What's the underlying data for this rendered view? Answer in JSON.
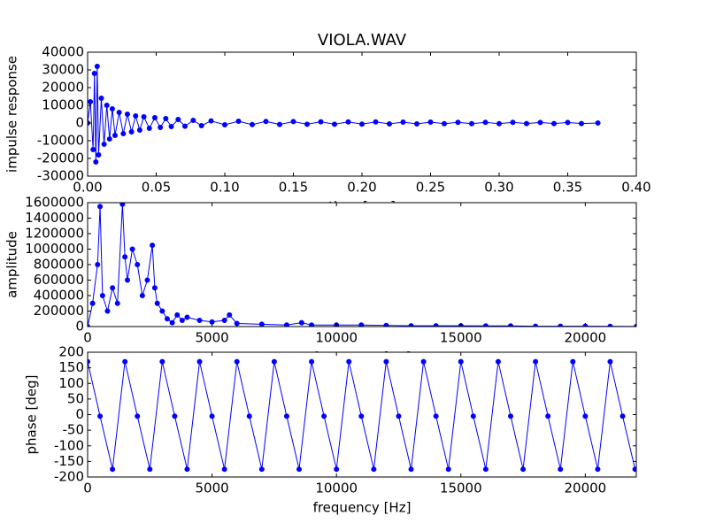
{
  "chart_data": [
    {
      "type": "line",
      "title": "VIOLA.WAV",
      "xlabel": "time [sec]",
      "ylabel": "impulse response",
      "color": "#0000ff",
      "marker": true,
      "x": [
        0.0,
        0.002,
        0.004,
        0.005,
        0.006,
        0.007,
        0.008,
        0.01,
        0.012,
        0.014,
        0.016,
        0.018,
        0.02,
        0.023,
        0.026,
        0.029,
        0.032,
        0.035,
        0.038,
        0.041,
        0.045,
        0.049,
        0.053,
        0.057,
        0.061,
        0.066,
        0.071,
        0.077,
        0.083,
        0.09,
        0.1,
        0.11,
        0.12,
        0.13,
        0.14,
        0.15,
        0.16,
        0.17,
        0.18,
        0.19,
        0.2,
        0.21,
        0.22,
        0.23,
        0.24,
        0.25,
        0.26,
        0.27,
        0.28,
        0.29,
        0.3,
        0.31,
        0.32,
        0.33,
        0.34,
        0.35,
        0.36,
        0.372
      ],
      "values": [
        0,
        12000,
        -15000,
        28000,
        -22000,
        32000,
        -18000,
        14000,
        -12000,
        10000,
        -9000,
        8000,
        -7000,
        6000,
        -6000,
        5000,
        -5000,
        4000,
        -4000,
        3500,
        -3000,
        3000,
        -2500,
        2500,
        -2000,
        2000,
        -1800,
        1500,
        -1500,
        1200,
        -1000,
        1000,
        -900,
        900,
        -800,
        800,
        -700,
        700,
        -700,
        600,
        -600,
        600,
        -500,
        500,
        -500,
        500,
        -400,
        400,
        -400,
        400,
        -400,
        400,
        -300,
        300,
        -300,
        300,
        -300,
        0
      ],
      "xlim": [
        0,
        0.4
      ],
      "xticks": [
        {
          "value": 0,
          "label": "0.00"
        },
        0.05,
        {
          "value": 0.1,
          "label": "0.10"
        },
        0.15,
        {
          "value": 0.2,
          "label": "0.20"
        },
        0.25,
        {
          "value": 0.3,
          "label": "0.30"
        },
        0.35,
        {
          "value": 0.4,
          "label": "0.40"
        }
      ],
      "ylim": [
        -30000,
        40000
      ],
      "yticks": [
        -30000,
        -20000,
        -10000,
        0,
        10000,
        20000,
        30000,
        40000
      ]
    },
    {
      "type": "line",
      "xlabel": "frequency [Hz]",
      "ylabel": "amplitude",
      "color": "#0000ff",
      "marker": true,
      "x": [
        0,
        200,
        400,
        500,
        600,
        800,
        1000,
        1200,
        1400,
        1500,
        1600,
        1800,
        2000,
        2200,
        2400,
        2600,
        2700,
        2800,
        3000,
        3200,
        3400,
        3600,
        3800,
        4000,
        4500,
        5000,
        5500,
        5700,
        6000,
        7000,
        8000,
        8600,
        9000,
        10000,
        11000,
        12000,
        13000,
        14000,
        15000,
        16000,
        17000,
        18000,
        19000,
        20000,
        21000,
        22050
      ],
      "values": [
        0,
        300000,
        800000,
        1550000,
        400000,
        200000,
        500000,
        300000,
        1580000,
        900000,
        600000,
        1000000,
        800000,
        400000,
        600000,
        1050000,
        500000,
        300000,
        200000,
        100000,
        50000,
        150000,
        80000,
        120000,
        80000,
        60000,
        80000,
        150000,
        40000,
        30000,
        20000,
        50000,
        20000,
        20000,
        20000,
        15000,
        10000,
        10000,
        10000,
        8000,
        8000,
        5000,
        5000,
        5000,
        3000,
        2000
      ],
      "xlim": [
        0,
        22050
      ],
      "xticks": [
        0,
        5000,
        10000,
        15000,
        20000
      ],
      "ylim": [
        0,
        1600000
      ],
      "yticks": [
        0,
        200000,
        400000,
        600000,
        800000,
        1000000,
        1200000,
        1400000,
        1600000
      ]
    },
    {
      "type": "line",
      "xlabel": "frequency [Hz]",
      "ylabel": "phase [deg]",
      "color": "#0000ff",
      "marker": true,
      "x": [
        0,
        500,
        1000,
        1500,
        2000,
        2500,
        3000,
        3500,
        4000,
        4500,
        5000,
        5500,
        6000,
        6500,
        7000,
        7500,
        8000,
        8500,
        9000,
        9500,
        10000,
        10500,
        11000,
        11500,
        12000,
        12500,
        13000,
        13500,
        14000,
        14500,
        15000,
        15500,
        16000,
        16500,
        17000,
        17500,
        18000,
        18500,
        19000,
        19500,
        20000,
        20500,
        21000,
        21500,
        22000
      ],
      "values": [
        170,
        -5,
        -175,
        170,
        -5,
        -175,
        170,
        -5,
        -175,
        170,
        -5,
        -175,
        170,
        -5,
        -175,
        170,
        -5,
        -175,
        170,
        -5,
        -175,
        170,
        -5,
        -175,
        170,
        -5,
        -175,
        170,
        -5,
        -175,
        170,
        -5,
        -175,
        170,
        -5,
        -175,
        170,
        -5,
        -175,
        170,
        -5,
        -175,
        170,
        -5,
        -175
      ],
      "xlim": [
        0,
        22050
      ],
      "xticks": [
        0,
        5000,
        10000,
        15000,
        20000
      ],
      "ylim": [
        -200,
        200
      ],
      "yticks": [
        -200,
        -150,
        -100,
        -50,
        0,
        50,
        100,
        150,
        200
      ]
    }
  ]
}
